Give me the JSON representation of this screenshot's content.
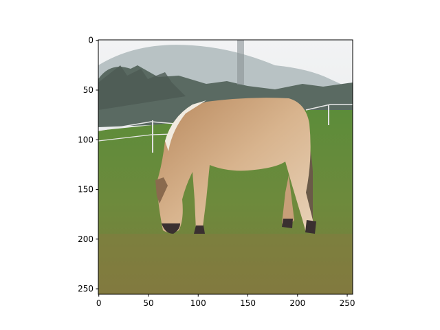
{
  "chart_data": {
    "type": "image",
    "xlim": [
      -0.5,
      255.5
    ],
    "ylim": [
      255.5,
      -0.5
    ],
    "xticks": [
      0,
      50,
      100,
      150,
      200,
      250
    ],
    "yticks": [
      0,
      50,
      100,
      150,
      200,
      250
    ]
  }
}
